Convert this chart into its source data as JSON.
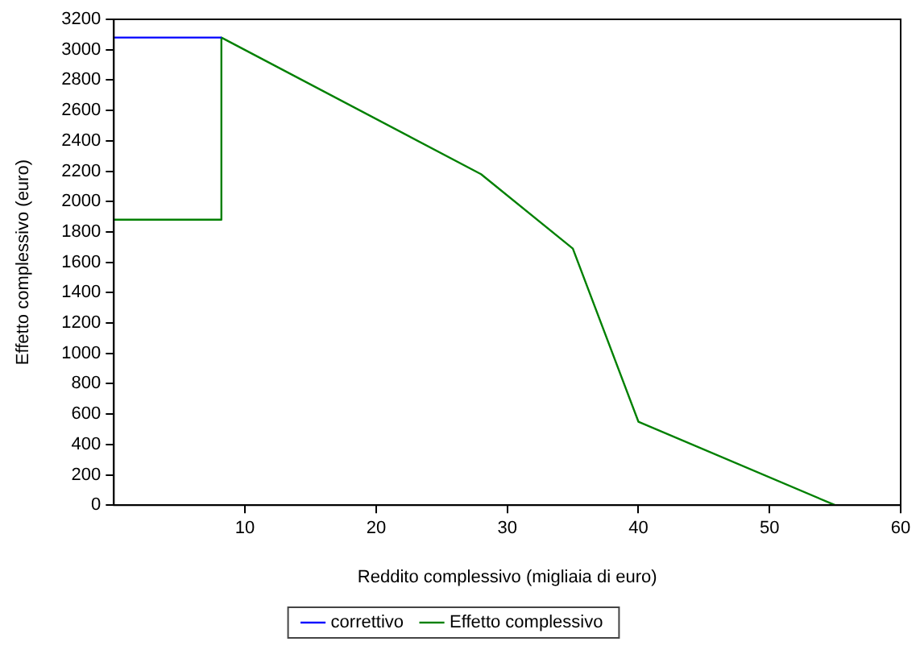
{
  "chart_data": {
    "type": "line",
    "xlabel": "Reddito complessivo (migliaia di euro)",
    "ylabel": "Effetto complessivo (euro)",
    "series": [
      {
        "name": "correttivo",
        "color": "#0000ff",
        "x": [
          0,
          8.2
        ],
        "values": [
          3080,
          3080
        ]
      },
      {
        "name": "Effetto complessivo",
        "color": "#008000",
        "x": [
          0,
          8.2,
          8.2,
          28,
          35,
          40,
          55
        ],
        "values": [
          1880,
          1880,
          3080,
          2180,
          1690,
          550,
          0
        ]
      }
    ],
    "xlim": [
      0,
      60
    ],
    "xticks": [
      10,
      20,
      30,
      40,
      50,
      60
    ],
    "ylim": [
      0,
      3200
    ],
    "yticks": [
      0,
      200,
      400,
      600,
      800,
      1000,
      1200,
      1400,
      1600,
      1800,
      2000,
      2200,
      2400,
      2600,
      2800,
      3000,
      3200
    ],
    "grid": false,
    "legend": "bottom",
    "marker": "none",
    "line_style": "solid"
  }
}
